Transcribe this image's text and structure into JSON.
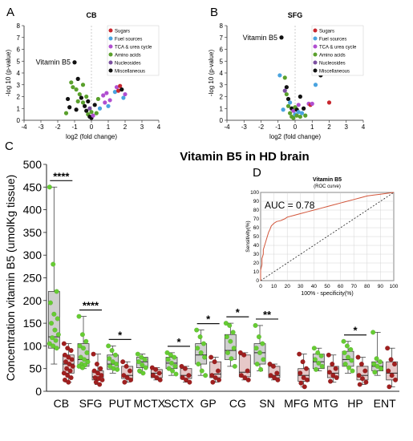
{
  "panel_labels": {
    "a": "A",
    "b": "B",
    "c": "C",
    "d": "D"
  },
  "colors": {
    "sugars": "#c8272e",
    "fuel_sources": "#4aa3df",
    "tca": "#b04fd0",
    "amino_acids": "#5aa02c",
    "nucleosides": "#7b4fa0",
    "misc": "#111111",
    "control": "#66cc33",
    "hd": "#a01f1f",
    "box_control": "#cfcfcf",
    "box_hd": "#e6c8c8",
    "roc": "#d2553a"
  },
  "chart_data": [
    {
      "id": "A",
      "type": "scatter",
      "title": "CB",
      "xlabel": "log2 (fold change)",
      "ylabel": "-log 10 (p-value)",
      "xlim": [
        -4,
        4
      ],
      "ylim": [
        0,
        8
      ],
      "xticks": [
        "-4",
        "-3",
        "-2",
        "-1",
        "0",
        "1",
        "2",
        "3",
        "4"
      ],
      "yticks": [
        "0",
        "1",
        "2",
        "3",
        "4",
        "5",
        "6",
        "7",
        "8"
      ],
      "legend": [
        "Sugars",
        "Fuel sources",
        "TCA & urea cycle",
        "Amino acids",
        "Nucleosides",
        "Miscellaneous"
      ],
      "legend_position": "top-right",
      "annotation": {
        "text": "Vitamin B5",
        "x": -1.0,
        "y": 4.9
      },
      "points": [
        {
          "x": -1.0,
          "y": 4.9,
          "c": "misc"
        },
        {
          "x": -1.2,
          "y": 3.2,
          "c": "amino_acids"
        },
        {
          "x": -1.1,
          "y": 2.8,
          "c": "amino_acids"
        },
        {
          "x": -0.9,
          "y": 2.6,
          "c": "amino_acids"
        },
        {
          "x": -0.8,
          "y": 3.5,
          "c": "misc"
        },
        {
          "x": -0.7,
          "y": 2.2,
          "c": "amino_acids"
        },
        {
          "x": -0.6,
          "y": 1.9,
          "c": "misc"
        },
        {
          "x": -0.5,
          "y": 3.0,
          "c": "amino_acids"
        },
        {
          "x": -0.5,
          "y": 1.5,
          "c": "amino_acids"
        },
        {
          "x": -0.4,
          "y": 1.2,
          "c": "misc"
        },
        {
          "x": -0.3,
          "y": 2.0,
          "c": "amino_acids"
        },
        {
          "x": -0.3,
          "y": 0.8,
          "c": "misc"
        },
        {
          "x": -0.2,
          "y": 1.6,
          "c": "misc"
        },
        {
          "x": -0.2,
          "y": 0.5,
          "c": "amino_acids"
        },
        {
          "x": -0.1,
          "y": 1.0,
          "c": "nucleosides"
        },
        {
          "x": -0.1,
          "y": 0.3,
          "c": "misc"
        },
        {
          "x": 0.0,
          "y": 0.7,
          "c": "amino_acids"
        },
        {
          "x": 0.0,
          "y": 0.2,
          "c": "misc"
        },
        {
          "x": 0.1,
          "y": 0.4,
          "c": "tca"
        },
        {
          "x": 0.2,
          "y": 1.3,
          "c": "misc"
        },
        {
          "x": 0.3,
          "y": 0.6,
          "c": "amino_acids"
        },
        {
          "x": 0.4,
          "y": 1.8,
          "c": "amino_acids"
        },
        {
          "x": -1.4,
          "y": 1.8,
          "c": "misc"
        },
        {
          "x": -1.3,
          "y": 1.1,
          "c": "misc"
        },
        {
          "x": -1.5,
          "y": 0.6,
          "c": "amino_acids"
        },
        {
          "x": -0.9,
          "y": 0.9,
          "c": "misc"
        },
        {
          "x": -0.8,
          "y": 1.6,
          "c": "amino_acids"
        },
        {
          "x": 0.7,
          "y": 2.1,
          "c": "tca"
        },
        {
          "x": 0.8,
          "y": 1.5,
          "c": "tca"
        },
        {
          "x": 0.9,
          "y": 2.3,
          "c": "tca"
        },
        {
          "x": 1.0,
          "y": 1.2,
          "c": "fuel_sources"
        },
        {
          "x": 1.1,
          "y": 1.7,
          "c": "tca"
        },
        {
          "x": 1.4,
          "y": 2.4,
          "c": "fuel_sources"
        },
        {
          "x": 1.5,
          "y": 2.8,
          "c": "tca"
        },
        {
          "x": 1.6,
          "y": 2.5,
          "c": "sugars"
        },
        {
          "x": 1.7,
          "y": 2.9,
          "c": "sugars"
        },
        {
          "x": 1.8,
          "y": 2.6,
          "c": "misc"
        },
        {
          "x": 1.9,
          "y": 1.9,
          "c": "fuel_sources"
        },
        {
          "x": 2.0,
          "y": 2.2,
          "c": "tca"
        },
        {
          "x": 0.5,
          "y": 1.0,
          "c": "fuel_sources"
        }
      ]
    },
    {
      "id": "B",
      "type": "scatter",
      "title": "SFG",
      "xlabel": "log2 (fold change)",
      "ylabel": "-log 10 (p-value)",
      "xlim": [
        -4,
        4
      ],
      "ylim": [
        0,
        8
      ],
      "xticks": [
        "-4",
        "-3",
        "-2",
        "-1",
        "0",
        "1",
        "2",
        "3",
        "4"
      ],
      "yticks": [
        "0",
        "1",
        "2",
        "3",
        "4",
        "5",
        "6",
        "7",
        "8"
      ],
      "legend": [
        "Sugars",
        "Fuel sources",
        "TCA & urea cycle",
        "Amino acids",
        "Nucleosides",
        "Miscellaneous"
      ],
      "legend_position": "top-right",
      "annotation": {
        "text": "Vitamin B5",
        "x": -0.8,
        "y": 7.0
      },
      "points": [
        {
          "x": -0.8,
          "y": 7.0,
          "c": "misc"
        },
        {
          "x": -0.6,
          "y": 3.6,
          "c": "amino_acids"
        },
        {
          "x": -0.5,
          "y": 2.8,
          "c": "misc"
        },
        {
          "x": -0.5,
          "y": 2.2,
          "c": "amino_acids"
        },
        {
          "x": -0.4,
          "y": 1.8,
          "c": "misc"
        },
        {
          "x": -0.4,
          "y": 1.2,
          "c": "amino_acids"
        },
        {
          "x": -0.3,
          "y": 1.5,
          "c": "fuel_sources"
        },
        {
          "x": -0.3,
          "y": 0.6,
          "c": "amino_acids"
        },
        {
          "x": -0.2,
          "y": 1.0,
          "c": "misc"
        },
        {
          "x": -0.2,
          "y": 0.3,
          "c": "amino_acids"
        },
        {
          "x": -0.1,
          "y": 0.8,
          "c": "tca"
        },
        {
          "x": -0.1,
          "y": 0.2,
          "c": "amino_acids"
        },
        {
          "x": 0.0,
          "y": 0.5,
          "c": "fuel_sources"
        },
        {
          "x": 0.0,
          "y": 1.1,
          "c": "amino_acids"
        },
        {
          "x": 0.1,
          "y": 0.4,
          "c": "amino_acids"
        },
        {
          "x": 0.1,
          "y": 0.9,
          "c": "misc"
        },
        {
          "x": 0.2,
          "y": 0.7,
          "c": "fuel_sources"
        },
        {
          "x": 0.2,
          "y": 1.3,
          "c": "tca"
        },
        {
          "x": 0.3,
          "y": 0.3,
          "c": "amino_acids"
        },
        {
          "x": 0.4,
          "y": 0.6,
          "c": "fuel_sources"
        },
        {
          "x": 0.5,
          "y": 1.0,
          "c": "misc"
        },
        {
          "x": 0.6,
          "y": 0.4,
          "c": "amino_acids"
        },
        {
          "x": -0.7,
          "y": 0.9,
          "c": "fuel_sources"
        },
        {
          "x": -0.6,
          "y": 2.5,
          "c": "nucleosides"
        },
        {
          "x": 0.8,
          "y": 1.4,
          "c": "tca"
        },
        {
          "x": 0.9,
          "y": 1.3,
          "c": "sugars"
        },
        {
          "x": 1.0,
          "y": 1.4,
          "c": "tca"
        },
        {
          "x": 1.2,
          "y": 3.0,
          "c": "fuel_sources"
        },
        {
          "x": 1.3,
          "y": 5.8,
          "c": "fuel_sources"
        },
        {
          "x": 1.4,
          "y": 4.0,
          "c": "sugars"
        },
        {
          "x": 1.5,
          "y": 3.8,
          "c": "misc"
        },
        {
          "x": 1.7,
          "y": 4.0,
          "c": "sugars"
        },
        {
          "x": 2.0,
          "y": 1.5,
          "c": "sugars"
        },
        {
          "x": 2.8,
          "y": 4.9,
          "c": "misc"
        },
        {
          "x": -0.9,
          "y": 3.8,
          "c": "fuel_sources"
        },
        {
          "x": 0.3,
          "y": 2.0,
          "c": "misc"
        }
      ]
    },
    {
      "id": "C",
      "type": "box",
      "title": "Vitamin B5 in HD brain",
      "ylabel": "Concentration vitamin B5 (umolKg tissue)",
      "ylim": [
        0,
        500
      ],
      "yticks": [
        "0",
        "50",
        "100",
        "150",
        "200",
        "250",
        "300",
        "350",
        "400",
        "450",
        "500"
      ],
      "categories": [
        "CB",
        "SFG",
        "PUT",
        "MCTX",
        "SCTX",
        "GP",
        "CG",
        "SN",
        "MFG",
        "MTG",
        "HP",
        "ENT"
      ],
      "significance": [
        "****",
        "****",
        "*",
        "",
        "*",
        "*",
        "*",
        "**",
        "",
        "",
        "*",
        ""
      ],
      "series": [
        {
          "role": "control",
          "boxes": [
            {
              "min": 60,
              "q1": 95,
              "median": 120,
              "q3": 220,
              "max": 450
            },
            {
              "min": 50,
              "q1": 55,
              "median": 70,
              "q3": 105,
              "max": 165
            },
            {
              "min": 40,
              "q1": 48,
              "median": 60,
              "q3": 80,
              "max": 100
            },
            {
              "min": 40,
              "q1": 52,
              "median": 65,
              "q3": 75,
              "max": 82
            },
            {
              "min": 35,
              "q1": 50,
              "median": 62,
              "q3": 75,
              "max": 85
            },
            {
              "min": 35,
              "q1": 60,
              "median": 80,
              "q3": 105,
              "max": 135
            },
            {
              "min": 55,
              "q1": 70,
              "median": 90,
              "q3": 125,
              "max": 150
            },
            {
              "min": 45,
              "q1": 60,
              "median": 85,
              "q3": 105,
              "max": 145
            },
            {
              "min": 0,
              "q1": 0,
              "median": 0,
              "q3": 0,
              "max": 0
            },
            {
              "min": 45,
              "q1": 50,
              "median": 65,
              "q3": 82,
              "max": 95
            },
            {
              "min": 40,
              "q1": 55,
              "median": 70,
              "q3": 88,
              "max": 110
            },
            {
              "min": 35,
              "q1": 45,
              "median": 55,
              "q3": 65,
              "max": 130
            }
          ],
          "points": [
            [
              450,
              280,
              220,
              195,
              170,
              160,
              150,
              135,
              125,
              118,
              112,
              105,
              100,
              95
            ],
            [
              165,
              125,
              110,
              100,
              95,
              85,
              75,
              70,
              65,
              60,
              58,
              55,
              52
            ],
            [
              100,
              90,
              80,
              72,
              65,
              60,
              55,
              50,
              48
            ],
            [
              82,
              75,
              70,
              65,
              58,
              52,
              45,
              40
            ],
            [
              85,
              80,
              75,
              70,
              62,
              55,
              50,
              45,
              38
            ],
            [
              135,
              120,
              105,
              95,
              85,
              75,
              60,
              45,
              35
            ],
            [
              150,
              145,
              130,
              120,
              110,
              95,
              85,
              72,
              55
            ],
            [
              145,
              120,
              105,
              95,
              85,
              70,
              60,
              48
            ],
            [],
            [
              95,
              85,
              78,
              70,
              62,
              55,
              48
            ],
            [
              110,
              100,
              92,
              85,
              75,
              68,
              60,
              52,
              45
            ],
            [
              130,
              72,
              65,
              60,
              55,
              50,
              42
            ]
          ]
        },
        {
          "role": "hd",
          "boxes": [
            {
              "min": 20,
              "q1": 40,
              "median": 60,
              "q3": 80,
              "max": 105
            },
            {
              "min": 15,
              "q1": 25,
              "median": 32,
              "q3": 45,
              "max": 82
            },
            {
              "min": 20,
              "q1": 28,
              "median": 35,
              "q3": 55,
              "max": 65
            },
            {
              "min": 25,
              "q1": 30,
              "median": 40,
              "q3": 48,
              "max": 52
            },
            {
              "min": 20,
              "q1": 28,
              "median": 35,
              "q3": 50,
              "max": 55
            },
            {
              "min": 20,
              "q1": 30,
              "median": 38,
              "q3": 65,
              "max": 75
            },
            {
              "min": 25,
              "q1": 32,
              "median": 42,
              "q3": 80,
              "max": 85
            },
            {
              "min": 25,
              "q1": 30,
              "median": 35,
              "q3": 55,
              "max": 60
            },
            {
              "min": 10,
              "q1": 22,
              "median": 35,
              "q3": 50,
              "max": 82
            },
            {
              "min": 20,
              "q1": 30,
              "median": 40,
              "q3": 55,
              "max": 80
            },
            {
              "min": 15,
              "q1": 25,
              "median": 35,
              "q3": 55,
              "max": 75
            },
            {
              "min": 10,
              "q1": 25,
              "median": 40,
              "q3": 65,
              "max": 95
            }
          ],
          "points": [
            [
              105,
              95,
              90,
              80,
              75,
              70,
              65,
              60,
              55,
              50,
              45,
              40,
              35,
              30,
              25,
              20
            ],
            [
              82,
              60,
              50,
              45,
              40,
              35,
              30,
              28,
              25,
              20,
              15
            ],
            [
              65,
              55,
              45,
              35,
              30,
              25,
              20
            ],
            [
              52,
              48,
              40,
              35,
              30,
              25
            ],
            [
              55,
              50,
              35,
              30,
              25,
              20
            ],
            [
              75,
              65,
              45,
              35,
              30,
              25,
              20
            ],
            [
              85,
              80,
              45,
              35,
              30,
              25
            ],
            [
              60,
              55,
              40,
              35,
              30,
              25
            ],
            [
              82,
              65,
              50,
              40,
              30,
              25,
              18,
              10
            ],
            [
              80,
              60,
              50,
              42,
              35,
              30,
              22
            ],
            [
              75,
              60,
              45,
              35,
              28,
              20,
              15
            ],
            [
              95,
              70,
              60,
              45,
              35,
              25,
              10
            ]
          ]
        }
      ]
    },
    {
      "id": "D",
      "type": "line",
      "title": "Vitamin B5",
      "subtitle": "(ROC curve)",
      "xlabel": "100% - specificity(%)",
      "ylabel": "Sensitivity(%)",
      "xlim": [
        0,
        100
      ],
      "ylim": [
        0,
        100
      ],
      "xticks": [
        "0",
        "10",
        "20",
        "30",
        "40",
        "50",
        "60",
        "70",
        "80",
        "90",
        "100"
      ],
      "yticks": [
        "0",
        "10",
        "20",
        "30",
        "40",
        "50",
        "60",
        "70",
        "80",
        "90",
        "100"
      ],
      "annotation": "AUC = 0.78",
      "x": [
        0,
        0,
        1,
        1,
        2,
        2,
        3,
        4,
        5,
        6,
        7,
        8,
        10,
        12,
        15,
        18,
        20,
        25,
        30,
        35,
        40,
        45,
        50,
        55,
        60,
        65,
        70,
        75,
        80,
        85,
        90,
        95,
        100
      ],
      "y": [
        0,
        12,
        18,
        25,
        30,
        35,
        40,
        45,
        50,
        55,
        58,
        62,
        65,
        67,
        68,
        70,
        72,
        74,
        76,
        78,
        80,
        82,
        84,
        86,
        88,
        90,
        92,
        94,
        96,
        97,
        98,
        99,
        100
      ],
      "reference_line": {
        "x": [
          0,
          100
        ],
        "y": [
          0,
          100
        ],
        "style": "dashed"
      }
    }
  ]
}
